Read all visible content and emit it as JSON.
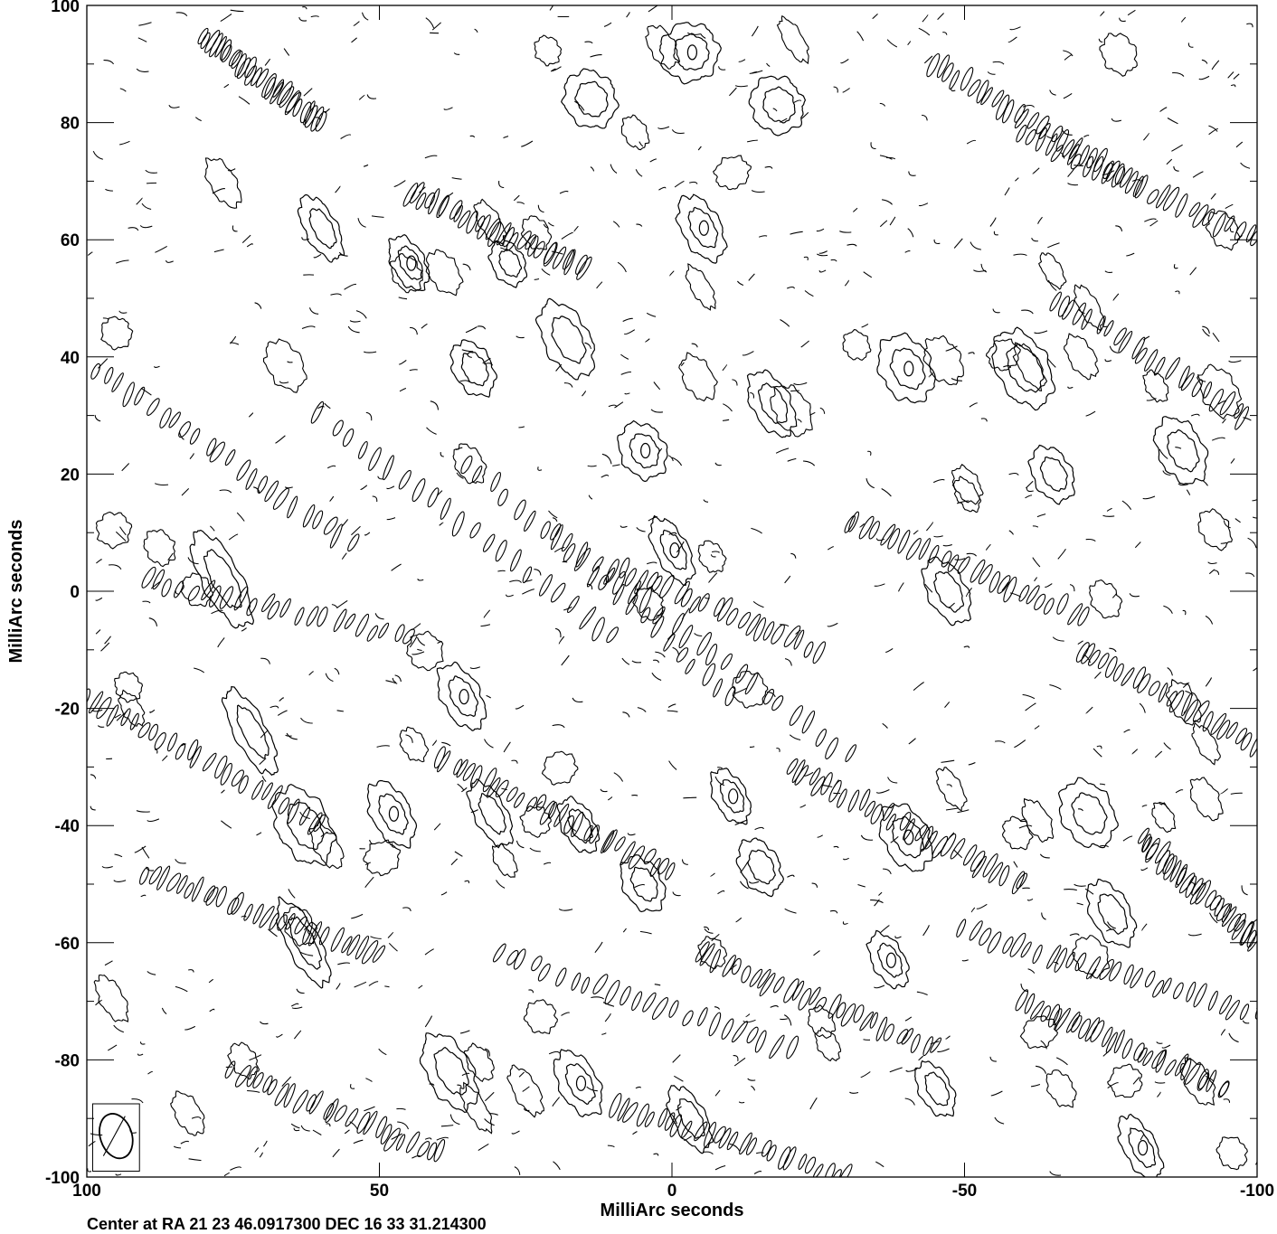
{
  "chart_data": {
    "type": "contour",
    "xlabel": "MilliArc seconds",
    "ylabel": "MilliArc seconds",
    "xlim": [
      100,
      -100
    ],
    "ylim": [
      -100,
      100
    ],
    "x_ticks": [
      100,
      50,
      0,
      -50,
      -100
    ],
    "x_tick_labels": [
      "100",
      "50",
      "0",
      "-50",
      "-100"
    ],
    "y_ticks": [
      100,
      80,
      60,
      40,
      20,
      0,
      -20,
      -40,
      -60,
      -80,
      -100
    ],
    "y_tick_labels": [
      "100",
      "80",
      "60",
      "40",
      "20",
      "0",
      "-20",
      "-40",
      "-60",
      "-80",
      "-100"
    ],
    "footer": "Center at RA 21 23 46.0917300  DEC 16 33 31.214300",
    "grid": false,
    "beam": {
      "x": 95,
      "y": -93,
      "major": 6.5,
      "minor": 4.5,
      "pa_deg": -18
    },
    "pattern": "stripe noise along diagonal ridges, broad closed contours with nested inner rings",
    "major_islands": [
      {
        "x": -3,
        "y": 92,
        "w": 9,
        "h": 5
      },
      {
        "x": -18,
        "y": 83,
        "w": 8,
        "h": 5
      },
      {
        "x": 14,
        "y": 84,
        "w": 8,
        "h": 5
      },
      {
        "x": 45,
        "y": 56,
        "w": 5,
        "h": 5
      },
      {
        "x": 60,
        "y": 62,
        "w": 5,
        "h": 6
      },
      {
        "x": 28,
        "y": 56,
        "w": 5,
        "h": 4
      },
      {
        "x": -5,
        "y": 62,
        "w": 6,
        "h": 6
      },
      {
        "x": 18,
        "y": 43,
        "w": 7,
        "h": 7
      },
      {
        "x": -17,
        "y": 32,
        "w": 6,
        "h": 6
      },
      {
        "x": -40,
        "y": 38,
        "w": 8,
        "h": 6
      },
      {
        "x": -60,
        "y": 38,
        "w": 8,
        "h": 7
      },
      {
        "x": 34,
        "y": 38,
        "w": 6,
        "h": 5
      },
      {
        "x": 5,
        "y": 24,
        "w": 7,
        "h": 5
      },
      {
        "x": -65,
        "y": 20,
        "w": 6,
        "h": 5
      },
      {
        "x": -87,
        "y": 24,
        "w": 7,
        "h": 6
      },
      {
        "x": 0,
        "y": 7,
        "w": 5,
        "h": 6
      },
      {
        "x": -47,
        "y": 0,
        "w": 6,
        "h": 6
      },
      {
        "x": 77,
        "y": 2,
        "w": 6,
        "h": 9
      },
      {
        "x": 36,
        "y": -18,
        "w": 6,
        "h": 6
      },
      {
        "x": 72,
        "y": -24,
        "w": 5,
        "h": 8
      },
      {
        "x": 63,
        "y": -40,
        "w": 8,
        "h": 7
      },
      {
        "x": 48,
        "y": -38,
        "w": 6,
        "h": 6
      },
      {
        "x": 31,
        "y": -38,
        "w": 5,
        "h": 6
      },
      {
        "x": 16,
        "y": -40,
        "w": 5,
        "h": 5
      },
      {
        "x": -10,
        "y": -35,
        "w": 5,
        "h": 5
      },
      {
        "x": 5,
        "y": -50,
        "w": 6,
        "h": 5
      },
      {
        "x": -15,
        "y": -47,
        "w": 6,
        "h": 5
      },
      {
        "x": -40,
        "y": -42,
        "w": 7,
        "h": 6
      },
      {
        "x": -71,
        "y": -38,
        "w": 8,
        "h": 6
      },
      {
        "x": 63,
        "y": -60,
        "w": 5,
        "h": 8
      },
      {
        "x": -37,
        "y": -63,
        "w": 5,
        "h": 5
      },
      {
        "x": -75,
        "y": -55,
        "w": 6,
        "h": 6
      },
      {
        "x": 38,
        "y": -82,
        "w": 7,
        "h": 7
      },
      {
        "x": 16,
        "y": -84,
        "w": 6,
        "h": 6
      },
      {
        "x": -45,
        "y": -85,
        "w": 5,
        "h": 5
      },
      {
        "x": -3,
        "y": -90,
        "w": 5,
        "h": 6
      },
      {
        "x": -80,
        "y": -95,
        "w": 5,
        "h": 6
      }
    ]
  }
}
